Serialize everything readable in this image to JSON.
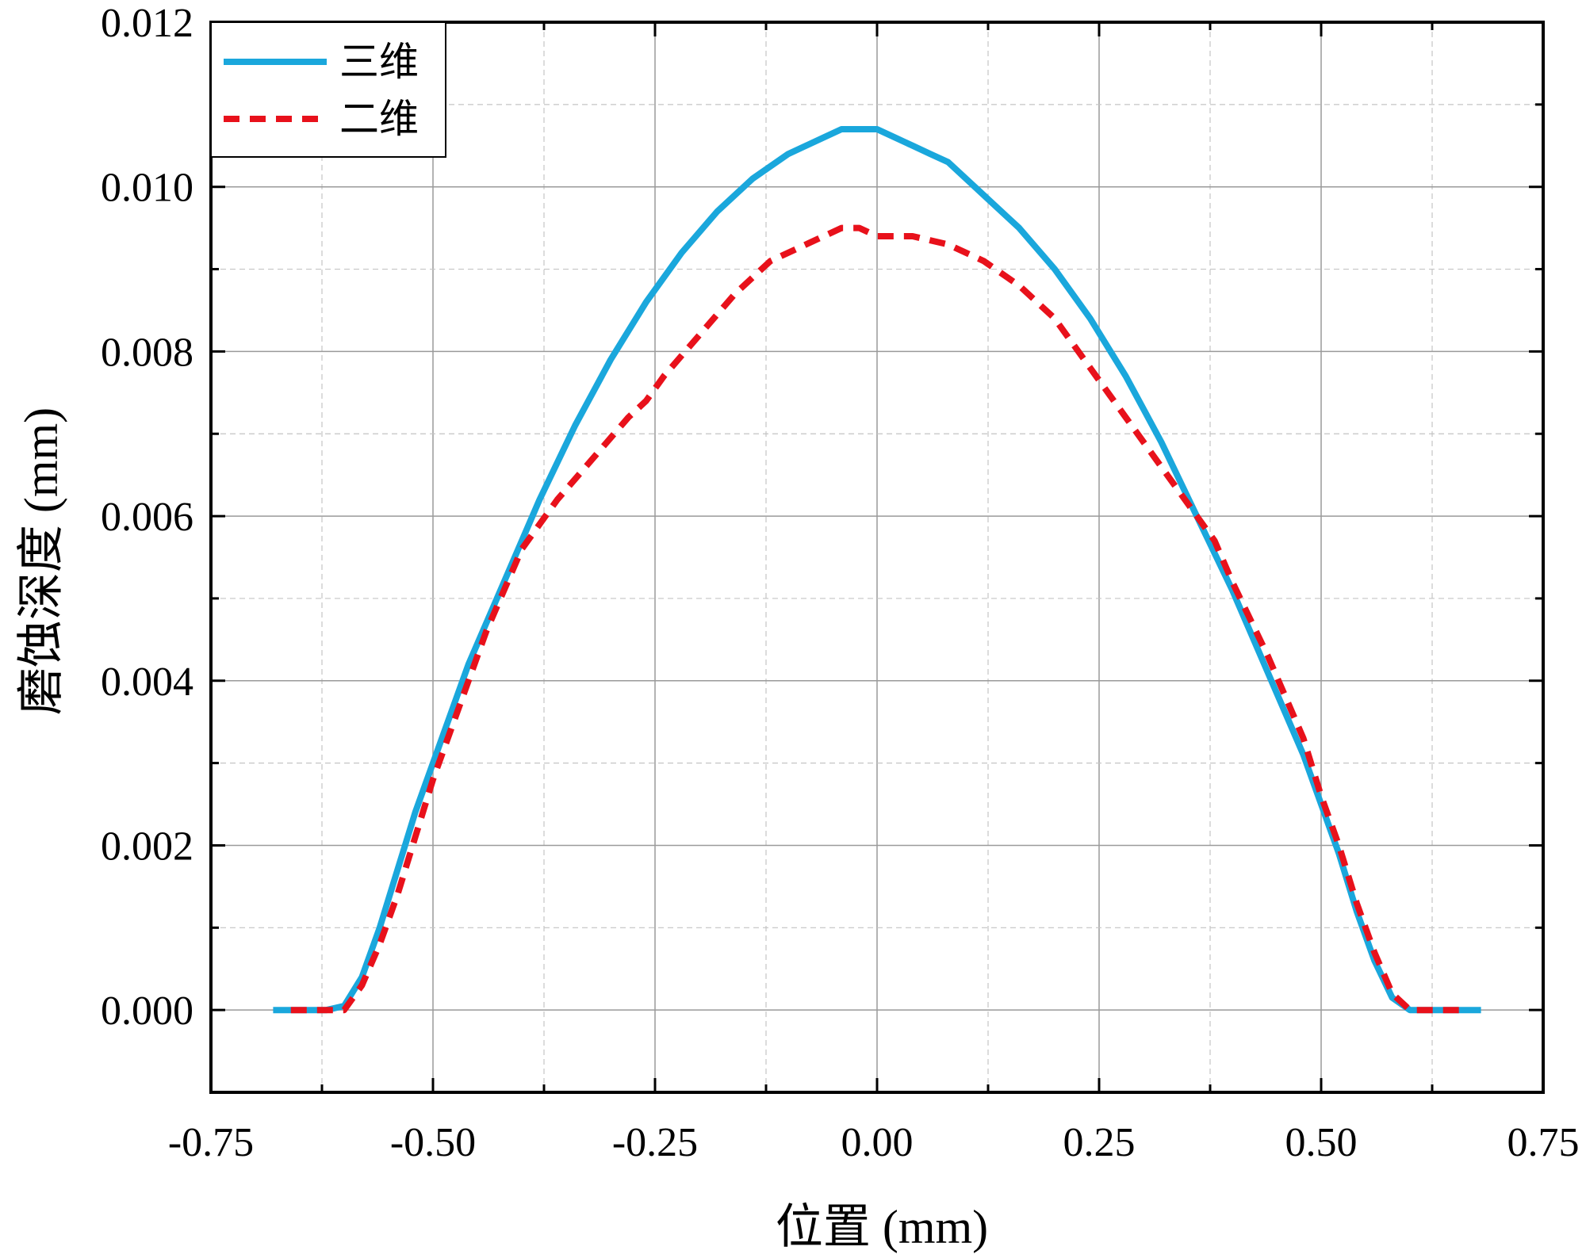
{
  "chart_data": {
    "type": "line",
    "title": "",
    "xlabel": "位置 (mm)",
    "ylabel": "磨蚀深度 (mm)",
    "xlim": [
      -0.75,
      0.75
    ],
    "ylim": [
      -0.001,
      0.012
    ],
    "x_ticks": [
      "-0.75",
      "-0.50",
      "-0.25",
      "0.00",
      "0.25",
      "0.50",
      "0.75"
    ],
    "y_ticks": [
      "0.000",
      "0.002",
      "0.004",
      "0.006",
      "0.008",
      "0.010",
      "0.012"
    ],
    "grid": true,
    "legend_position": "top-left",
    "series": [
      {
        "name": "三维",
        "color": "#1AA7DC",
        "style": "solid",
        "x": [
          -0.68,
          -0.62,
          -0.6,
          -0.58,
          -0.56,
          -0.54,
          -0.52,
          -0.5,
          -0.46,
          -0.42,
          -0.38,
          -0.34,
          -0.3,
          -0.26,
          -0.22,
          -0.18,
          -0.14,
          -0.1,
          -0.06,
          -0.04,
          -0.02,
          0.0,
          0.02,
          0.04,
          0.06,
          0.08,
          0.12,
          0.16,
          0.2,
          0.24,
          0.28,
          0.32,
          0.36,
          0.4,
          0.44,
          0.48,
          0.5,
          0.52,
          0.54,
          0.56,
          0.58,
          0.6,
          0.62,
          0.68
        ],
        "y": [
          0.0,
          0.0,
          5e-05,
          0.0004,
          0.001,
          0.0017,
          0.0024,
          0.003,
          0.0042,
          0.0052,
          0.0062,
          0.0071,
          0.0079,
          0.0086,
          0.0092,
          0.0097,
          0.0101,
          0.0104,
          0.0106,
          0.0107,
          0.0107,
          0.0107,
          0.0106,
          0.0105,
          0.0104,
          0.0103,
          0.0099,
          0.0095,
          0.009,
          0.0084,
          0.0077,
          0.0069,
          0.006,
          0.0051,
          0.0041,
          0.0031,
          0.0025,
          0.0019,
          0.0012,
          0.0006,
          0.00015,
          0.0,
          0.0,
          0.0
        ]
      },
      {
        "name": "二维",
        "color": "#E8111B",
        "style": "dashed",
        "x": [
          -0.66,
          -0.6,
          -0.58,
          -0.56,
          -0.54,
          -0.52,
          -0.5,
          -0.48,
          -0.44,
          -0.4,
          -0.36,
          -0.32,
          -0.28,
          -0.26,
          -0.24,
          -0.2,
          -0.16,
          -0.12,
          -0.08,
          -0.04,
          -0.02,
          0.0,
          0.02,
          0.04,
          0.08,
          0.12,
          0.16,
          0.2,
          0.24,
          0.28,
          0.32,
          0.36,
          0.38,
          0.4,
          0.44,
          0.48,
          0.5,
          0.52,
          0.54,
          0.56,
          0.58,
          0.6,
          0.66
        ],
        "y": [
          0.0,
          0.0,
          0.0003,
          0.0008,
          0.0014,
          0.0021,
          0.0028,
          0.0034,
          0.0046,
          0.0056,
          0.0062,
          0.0067,
          0.0072,
          0.0074,
          0.0077,
          0.0082,
          0.0087,
          0.0091,
          0.0093,
          0.0095,
          0.0095,
          0.0094,
          0.0094,
          0.0094,
          0.0093,
          0.0091,
          0.0088,
          0.0084,
          0.0078,
          0.0072,
          0.0066,
          0.006,
          0.0057,
          0.0052,
          0.0043,
          0.0033,
          0.0026,
          0.002,
          0.0013,
          0.0007,
          0.0002,
          0.0,
          0.0
        ]
      }
    ]
  }
}
